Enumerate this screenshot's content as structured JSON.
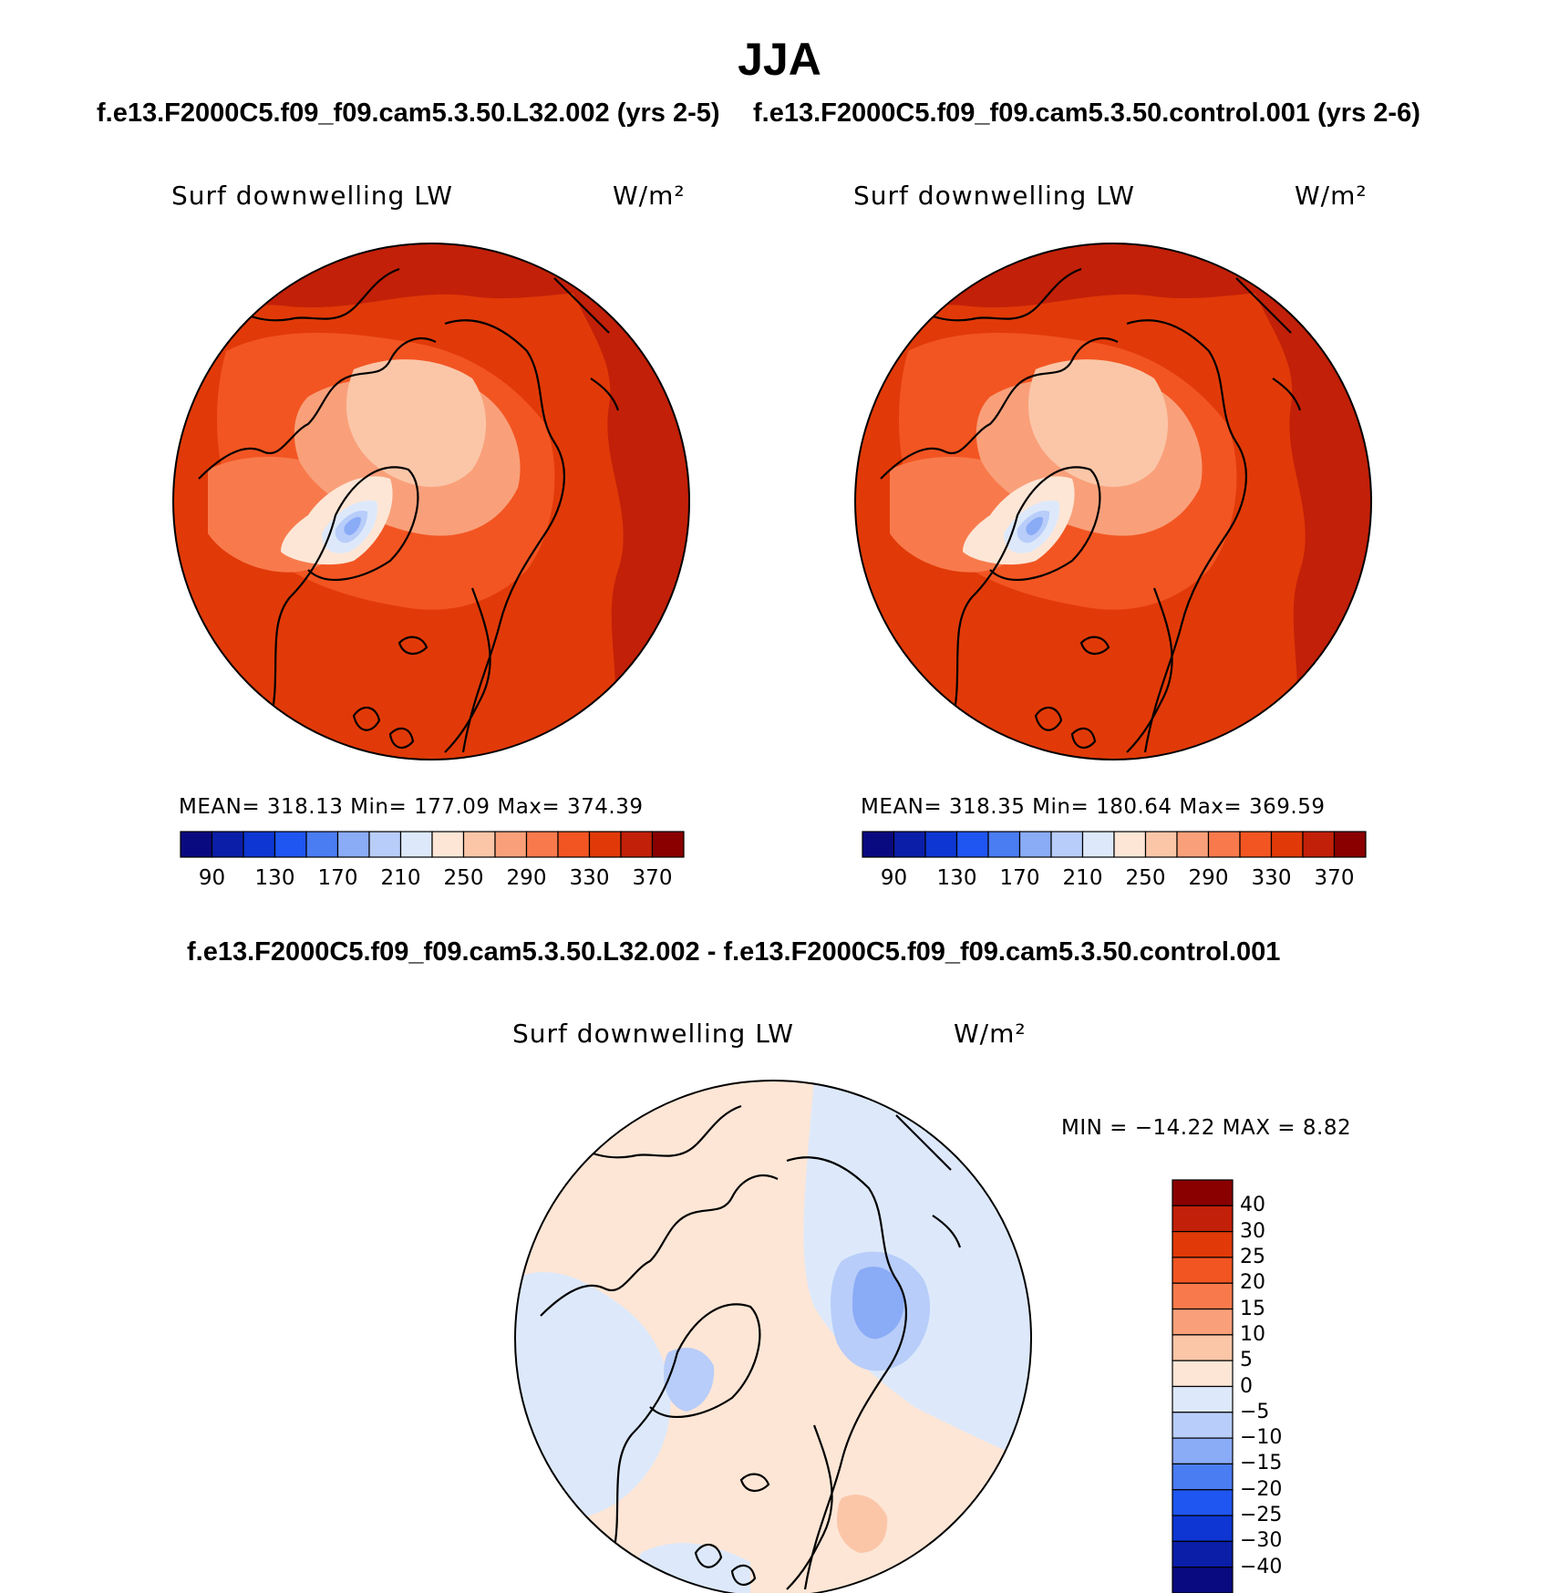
{
  "season": "JJA",
  "panels": {
    "left": {
      "case_title": "f.e13.F2000C5.f09_f09.cam5.3.50.L32.002 (yrs 2-5)",
      "variable": "Surf downwelling LW",
      "units": "W/m²",
      "stats": "MEAN= 318.13   Min= 177.09   Max= 374.39"
    },
    "right": {
      "case_title": "f.e13.F2000C5.f09_f09.cam5.3.50.control.001 (yrs 2-6)",
      "variable": "Surf downwelling LW",
      "units": "W/m²",
      "stats": "MEAN= 318.35   Min= 180.64   Max= 369.59"
    },
    "diff": {
      "title": "f.e13.F2000C5.f09_f09.cam5.3.50.L32.002 - f.e13.F2000C5.f09_f09.cam5.3.50.control.001",
      "variable": "Surf downwelling LW",
      "units": "W/m²",
      "minmax": "MIN = −14.22 MAX =    8.82"
    }
  },
  "colorbar_abs": {
    "colors": [
      "#0a0a80",
      "#0b1ea8",
      "#0d36d2",
      "#1f55f0",
      "#4a7cf2",
      "#8aabf6",
      "#b8cdf9",
      "#dde9fb",
      "#fde6d6",
      "#fbc6a8",
      "#f9a07a",
      "#f87a4c",
      "#f25522",
      "#e13a08",
      "#c22008",
      "#8a0000"
    ],
    "labels": [
      "90",
      "130",
      "170",
      "210",
      "250",
      "290",
      "330",
      "370"
    ]
  },
  "colorbar_diff": {
    "colors": [
      "#8a0000",
      "#c22008",
      "#e13a08",
      "#f25522",
      "#f87a4c",
      "#f9a07a",
      "#fbc6a8",
      "#fde6d6",
      "#dde9fb",
      "#b8cdf9",
      "#8aabf6",
      "#4a7cf2",
      "#1f55f0",
      "#0d36d2",
      "#0b1ea8",
      "#0a0a80"
    ],
    "labels": [
      "40",
      "30",
      "25",
      "20",
      "15",
      "10",
      "5",
      "0",
      "−5",
      "−10",
      "−15",
      "−20",
      "−25",
      "−30",
      "−40"
    ]
  }
}
